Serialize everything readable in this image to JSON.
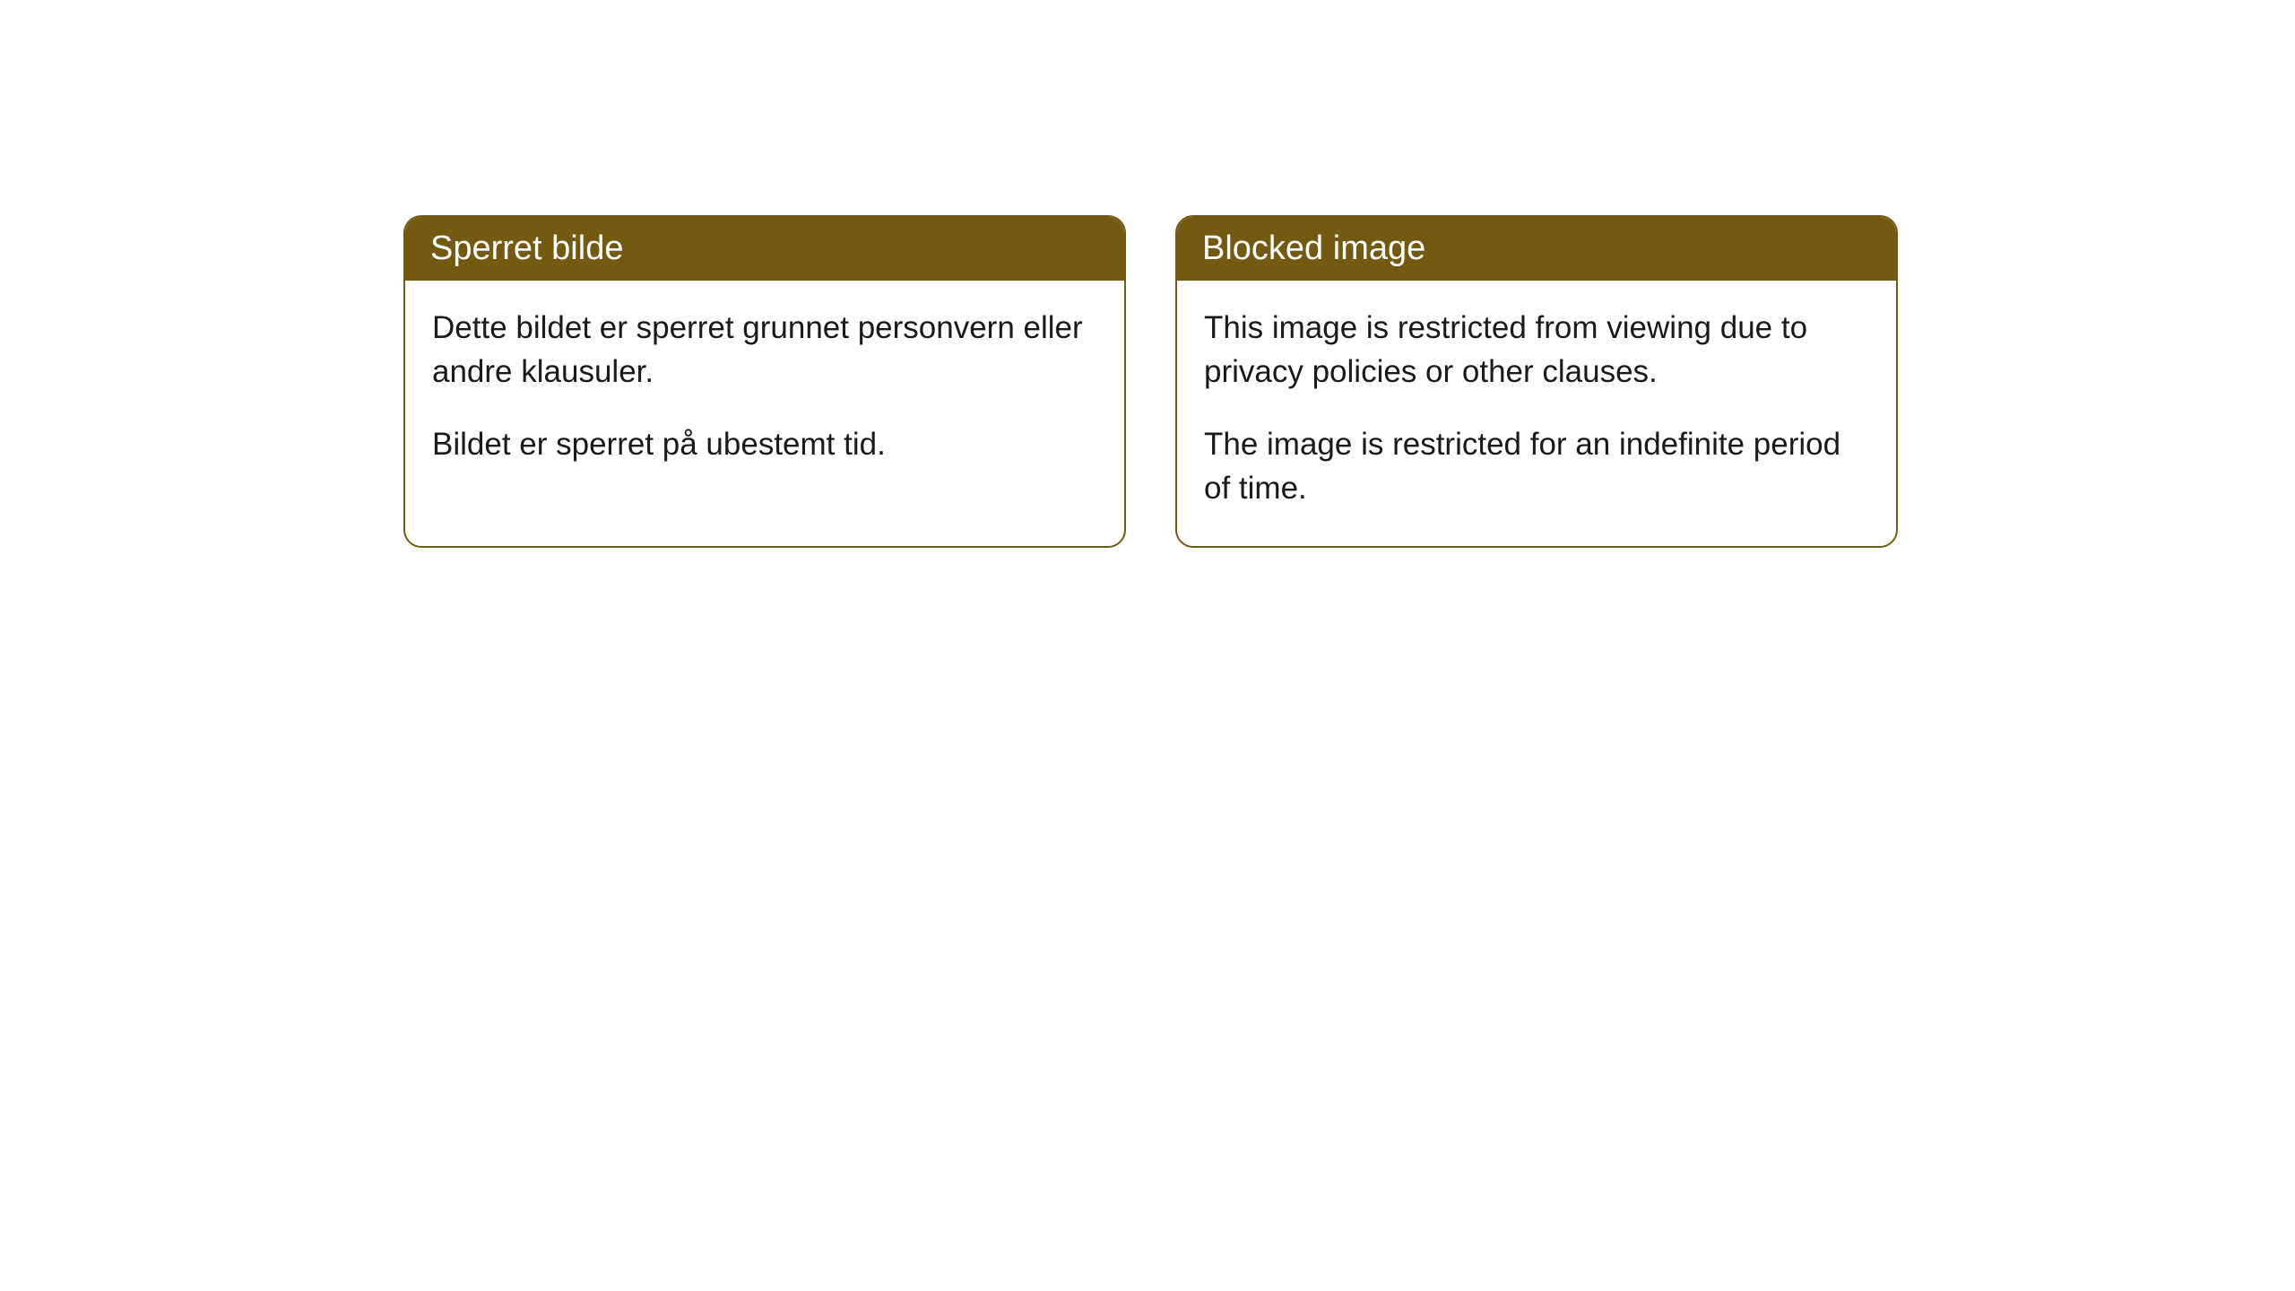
{
  "cards": [
    {
      "title": "Sperret bilde",
      "paragraph1": "Dette bildet er sperret grunnet personvern eller andre klausuler.",
      "paragraph2": "Bildet er sperret på ubestemt tid."
    },
    {
      "title": "Blocked image",
      "paragraph1": "This image is restricted from viewing due to privacy policies or other clauses.",
      "paragraph2": "The image is restricted for an indefinite period of time."
    }
  ],
  "styling": {
    "header_bg_color": "#745911",
    "header_text_color": "#ffffff",
    "border_color": "#745911",
    "body_bg_color": "#ffffff",
    "body_text_color": "#1a1a1a",
    "border_radius": 20,
    "title_fontsize": 38,
    "body_fontsize": 35
  }
}
